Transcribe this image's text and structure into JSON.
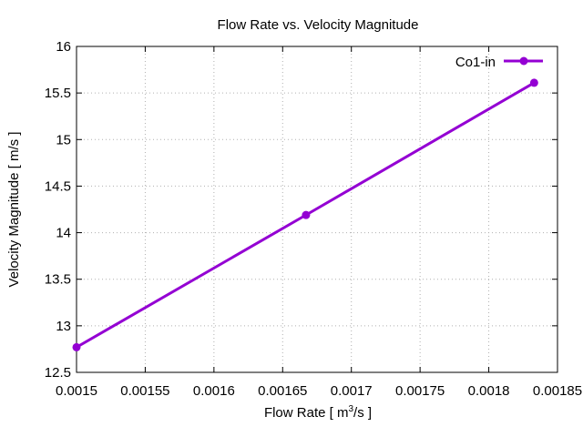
{
  "chart_data": {
    "type": "line",
    "title": "Flow Rate vs. Velocity Magnitude",
    "xlabel": {
      "pre": "Flow Rate [ m",
      "sup": "3",
      "post": "/s ]"
    },
    "ylabel": "Velocity Magnitude [ m/s ]",
    "xlim": [
      0.0015,
      0.00185
    ],
    "ylim": [
      12.5,
      16
    ],
    "xticks": [
      "0.0015",
      "0.00155",
      "0.0016",
      "0.00165",
      "0.0017",
      "0.00175",
      "0.0018",
      "0.00185"
    ],
    "yticks": [
      "12.5",
      "13",
      "13.5",
      "14",
      "14.5",
      "15",
      "15.5",
      "16"
    ],
    "grid": true,
    "legend_position": "top-right",
    "series": [
      {
        "name": "Co1-in",
        "color": "#9400d3",
        "x": [
          0.0015,
          0.001667,
          0.001833
        ],
        "y": [
          12.77,
          14.19,
          15.61
        ]
      }
    ]
  }
}
